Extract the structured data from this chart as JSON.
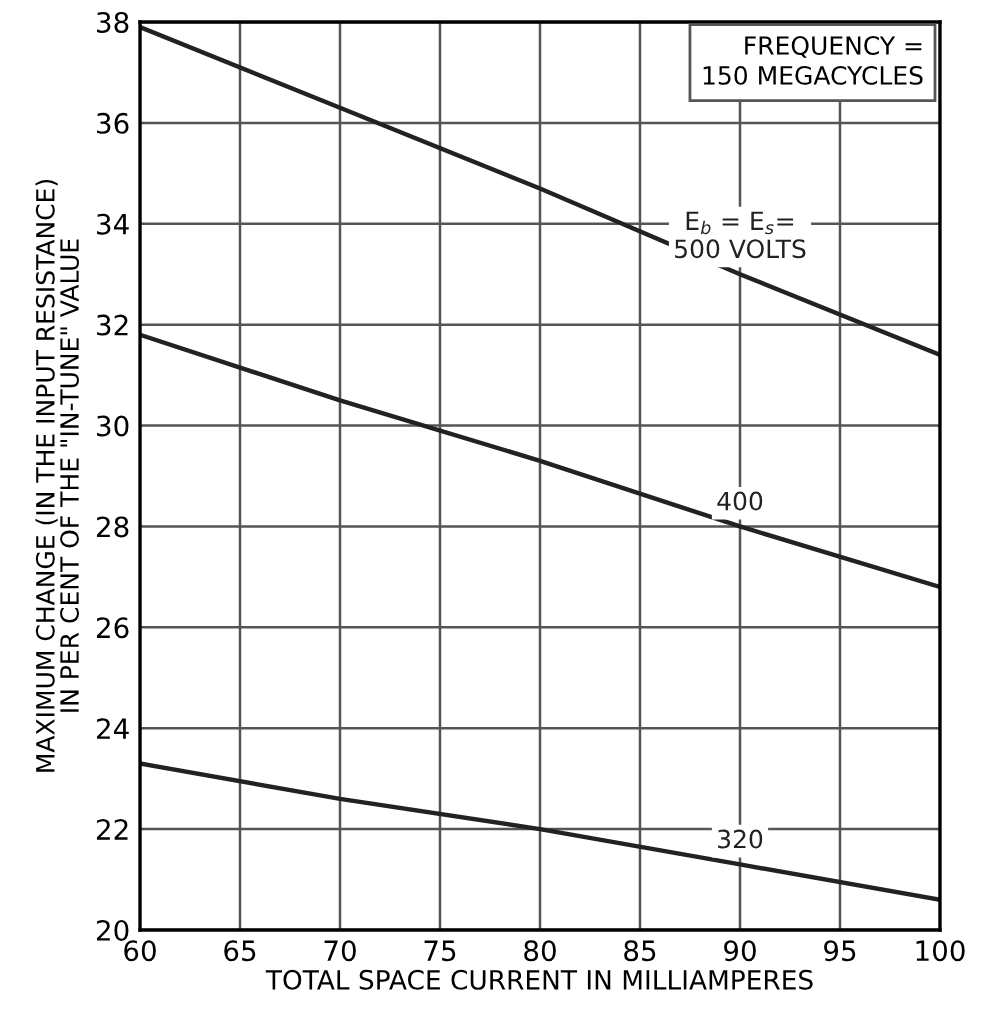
{
  "chart_data": {
    "type": "line",
    "xlabel": "TOTAL SPACE CURRENT IN MILLIAMPERES",
    "ylabel": "MAXIMUM CHANGE (IN THE INPUT RESISTANCE)\nIN PER CENT OF THE \"IN-TUNE\" VALUE",
    "x": [
      60,
      70,
      80,
      90,
      100
    ],
    "series": [
      {
        "name": "E$_{b}$ = E$_{s}$=\n500 VOLTS",
        "color": "#222222",
        "values": [
          37.9,
          36.3,
          34.7,
          33.0,
          31.4
        ]
      },
      {
        "name": "400",
        "color": "#222222",
        "values": [
          31.8,
          30.5,
          29.3,
          28.0,
          26.8
        ]
      },
      {
        "name": "320",
        "color": "#222222",
        "values": [
          23.3,
          22.6,
          22.0,
          21.3,
          20.6
        ]
      }
    ],
    "annotations": [
      "FREQUENCY =\n150 MEGACYCLES"
    ],
    "xlim": [
      60,
      100
    ],
    "ylim": [
      20,
      38
    ],
    "xticks": [
      60,
      65,
      70,
      75,
      80,
      85,
      90,
      95,
      100
    ],
    "yticks": [
      20,
      22,
      24,
      26,
      28,
      30,
      32,
      34,
      36,
      38
    ],
    "grid": true,
    "marker": "none",
    "line_style": "solid",
    "legend": false
  }
}
